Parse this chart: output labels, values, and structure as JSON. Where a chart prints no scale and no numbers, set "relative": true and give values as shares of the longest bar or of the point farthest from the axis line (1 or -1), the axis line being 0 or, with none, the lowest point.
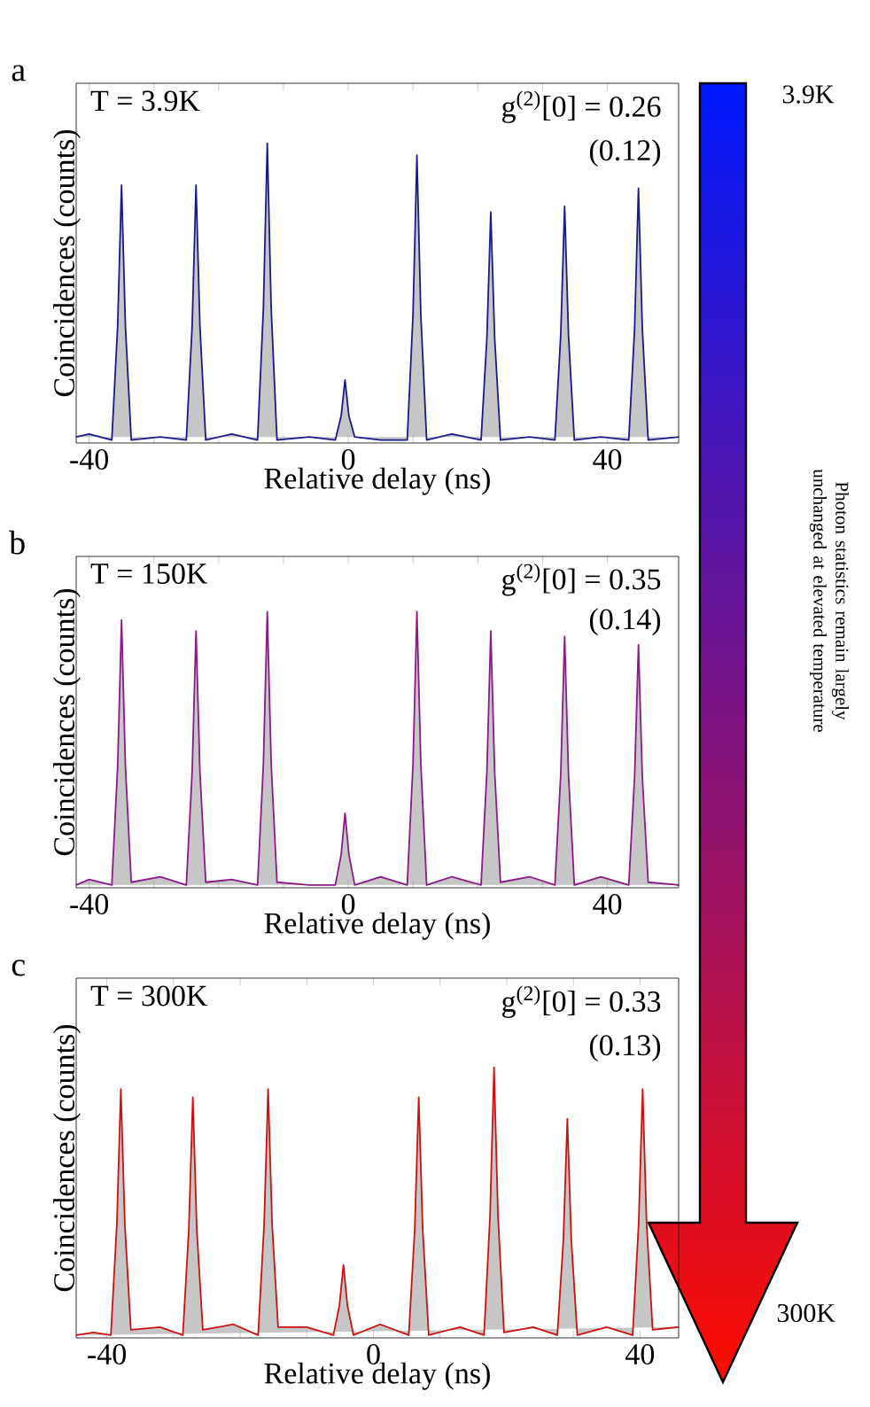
{
  "chart_data": [
    {
      "type": "area",
      "relative": true,
      "xlabel": "Relative delay (ns)",
      "ylabel": "Coincidences (counts)",
      "xlim": [
        -42,
        51
      ],
      "xticks": [
        -40,
        {
          "value": -30,
          "label": null
        },
        {
          "value": -20,
          "label": null
        },
        {
          "value": -10,
          "label": null
        },
        0,
        {
          "value": 10,
          "label": null
        },
        {
          "value": 20,
          "label": null
        },
        {
          "value": 30,
          "label": null
        },
        40
      ],
      "annotations": [
        "a",
        "T = 3.9K",
        "g$^{(2)}$[0] = 0.26",
        "(0.12)"
      ],
      "series": [
        {
          "color": "#1a1a8c",
          "x": [
            -42,
            -40,
            -36.5,
            -35.6,
            -35,
            -34.4,
            -33.5,
            -29,
            -25,
            -24.1,
            -23.5,
            -22.9,
            -22,
            -18,
            -14,
            -13.1,
            -12.5,
            -11.9,
            -11,
            -6,
            -2,
            -1.1,
            -0.5,
            0.1,
            1,
            5,
            9.1,
            10,
            10.6,
            11.2,
            12.1,
            16,
            20.5,
            21.4,
            22,
            22.6,
            23.5,
            28,
            31.9,
            32.8,
            33.4,
            34,
            34.9,
            39,
            43.3,
            44.2,
            44.8,
            45.4,
            46.3,
            51
          ],
          "values": [
            0.02,
            0.03,
            0.01,
            0.39,
            0.86,
            0.39,
            0.01,
            0.02,
            0.01,
            0.39,
            0.86,
            0.39,
            0.01,
            0.03,
            0.01,
            0.45,
            1,
            0.45,
            0.01,
            0.02,
            0.01,
            0.09,
            0.21,
            0.09,
            0.02,
            0.01,
            0.01,
            0.43,
            0.96,
            0.43,
            0.01,
            0.03,
            0.01,
            0.35,
            0.77,
            0.35,
            0.01,
            0.02,
            0.01,
            0.36,
            0.79,
            0.36,
            0.01,
            0.02,
            0.01,
            0.38,
            0.85,
            0.38,
            0.01,
            0.02
          ]
        }
      ]
    },
    {
      "type": "area",
      "relative": true,
      "xlabel": "Relative delay (ns)",
      "ylabel": "Coincidences (counts)",
      "xlim": [
        -42,
        51
      ],
      "xticks": [
        -40,
        {
          "value": -30,
          "label": null
        },
        {
          "value": -20,
          "label": null
        },
        {
          "value": -10,
          "label": null
        },
        0,
        {
          "value": 10,
          "label": null
        },
        {
          "value": 20,
          "label": null
        },
        {
          "value": 30,
          "label": null
        },
        40
      ],
      "annotations": [
        "b",
        "T = 150K",
        "g$^{(2)}$[0] = 0.35",
        "(0.14)"
      ],
      "series": [
        {
          "color": "#8b1a8b",
          "x": [
            -42,
            -40,
            -36.5,
            -35.6,
            -35,
            -34.4,
            -33.5,
            -29,
            -25,
            -24.1,
            -23.5,
            -22.9,
            -22,
            -18,
            -14,
            -13.1,
            -12.5,
            -11.9,
            -11,
            -6,
            -2,
            -1.1,
            -0.5,
            0.1,
            1,
            5,
            9.1,
            10,
            10.6,
            11.2,
            12.1,
            16,
            20.5,
            21.4,
            22,
            22.6,
            23.5,
            28,
            31.9,
            32.8,
            33.4,
            34,
            34.9,
            39,
            43.3,
            44.2,
            44.8,
            45.4,
            46.3,
            51
          ],
          "values": [
            0.01,
            0.03,
            0.01,
            0.44,
            0.97,
            0.44,
            0.02,
            0.04,
            0.01,
            0.42,
            0.93,
            0.42,
            0.02,
            0.03,
            0.01,
            0.45,
            1,
            0.45,
            0.02,
            0.01,
            0.01,
            0.12,
            0.27,
            0.12,
            0.01,
            0.04,
            0.01,
            0.45,
            1,
            0.45,
            0.01,
            0.04,
            0.01,
            0.42,
            0.93,
            0.42,
            0.02,
            0.04,
            0.01,
            0.41,
            0.91,
            0.41,
            0.01,
            0.04,
            0.01,
            0.4,
            0.88,
            0.4,
            0.02,
            0.01
          ]
        }
      ]
    },
    {
      "type": "area",
      "relative": true,
      "xlabel": "Relative delay (ns)",
      "ylabel": "Coincidences (counts)",
      "xlim": [
        -44.6,
        45.8
      ],
      "xticks": [
        -40,
        {
          "value": -30,
          "label": null
        },
        {
          "value": -20,
          "label": null
        },
        {
          "value": -10,
          "label": null
        },
        0,
        {
          "value": 10,
          "label": null
        },
        {
          "value": 20,
          "label": null
        },
        {
          "value": 30,
          "label": null
        },
        40
      ],
      "annotations": [
        "c",
        "T = 300K",
        "g$^{(2)}$[0] = 0.33",
        "(0.13)"
      ],
      "series": [
        {
          "color": "#cc1111",
          "x": [
            -44.6,
            -42,
            -39.4,
            -38.5,
            -37.9,
            -37.3,
            -36.4,
            -32,
            -28.6,
            -27.7,
            -27.1,
            -26.5,
            -25.6,
            -21,
            -17.3,
            -16.4,
            -15.8,
            -15.2,
            -14.3,
            -10,
            -6,
            -5.1,
            -4.5,
            -3.9,
            -3,
            1,
            5.3,
            6.2,
            6.8,
            7.4,
            8.3,
            13,
            16.6,
            17.5,
            18.1,
            18.7,
            19.6,
            24,
            27.6,
            28.5,
            29.1,
            29.7,
            30.6,
            35,
            38.9,
            39.8,
            40.4,
            41,
            41.9,
            45.8
          ],
          "values": [
            0.01,
            0.02,
            0.01,
            0.42,
            0.92,
            0.42,
            0.03,
            0.04,
            0.01,
            0.4,
            0.89,
            0.4,
            0.03,
            0.05,
            0.01,
            0.42,
            0.92,
            0.42,
            0.04,
            0.04,
            0.01,
            0.12,
            0.27,
            0.12,
            0.01,
            0.05,
            0.01,
            0.4,
            0.89,
            0.4,
            0.01,
            0.04,
            0.01,
            0.45,
            1,
            0.45,
            0.02,
            0.04,
            0.01,
            0.36,
            0.81,
            0.36,
            0.01,
            0.04,
            0.01,
            0.42,
            0.92,
            0.42,
            0.03,
            0.04
          ]
        }
      ]
    },
    {
      "type": "other",
      "annotations": [
        "3.9K",
        "Photon statistics remain largely unchanged at elevated temperature",
        "300K"
      ]
    }
  ]
}
